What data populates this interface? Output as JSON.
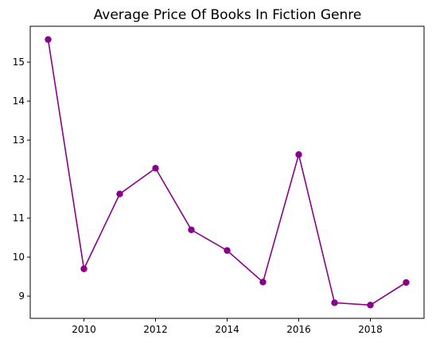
{
  "chart_data": {
    "type": "line",
    "title": "Average Price Of Books In Fiction Genre",
    "xlabel": "",
    "ylabel": "",
    "x": [
      2009,
      2010,
      2011,
      2012,
      2013,
      2014,
      2015,
      2016,
      2017,
      2018,
      2019
    ],
    "series": [
      {
        "values": [
          15.58,
          9.7,
          11.62,
          12.28,
          10.7,
          10.17,
          9.36,
          12.63,
          8.83,
          8.77,
          9.35
        ],
        "color": "#8B008B"
      }
    ],
    "xlim": [
      2008.5,
      2019.5
    ],
    "ylim": [
      8.43,
      15.92
    ],
    "x_ticks": [
      2010,
      2012,
      2014,
      2016,
      2018
    ],
    "y_ticks": [
      9,
      10,
      11,
      12,
      13,
      14,
      15
    ],
    "grid": false,
    "marker": "circle"
  }
}
